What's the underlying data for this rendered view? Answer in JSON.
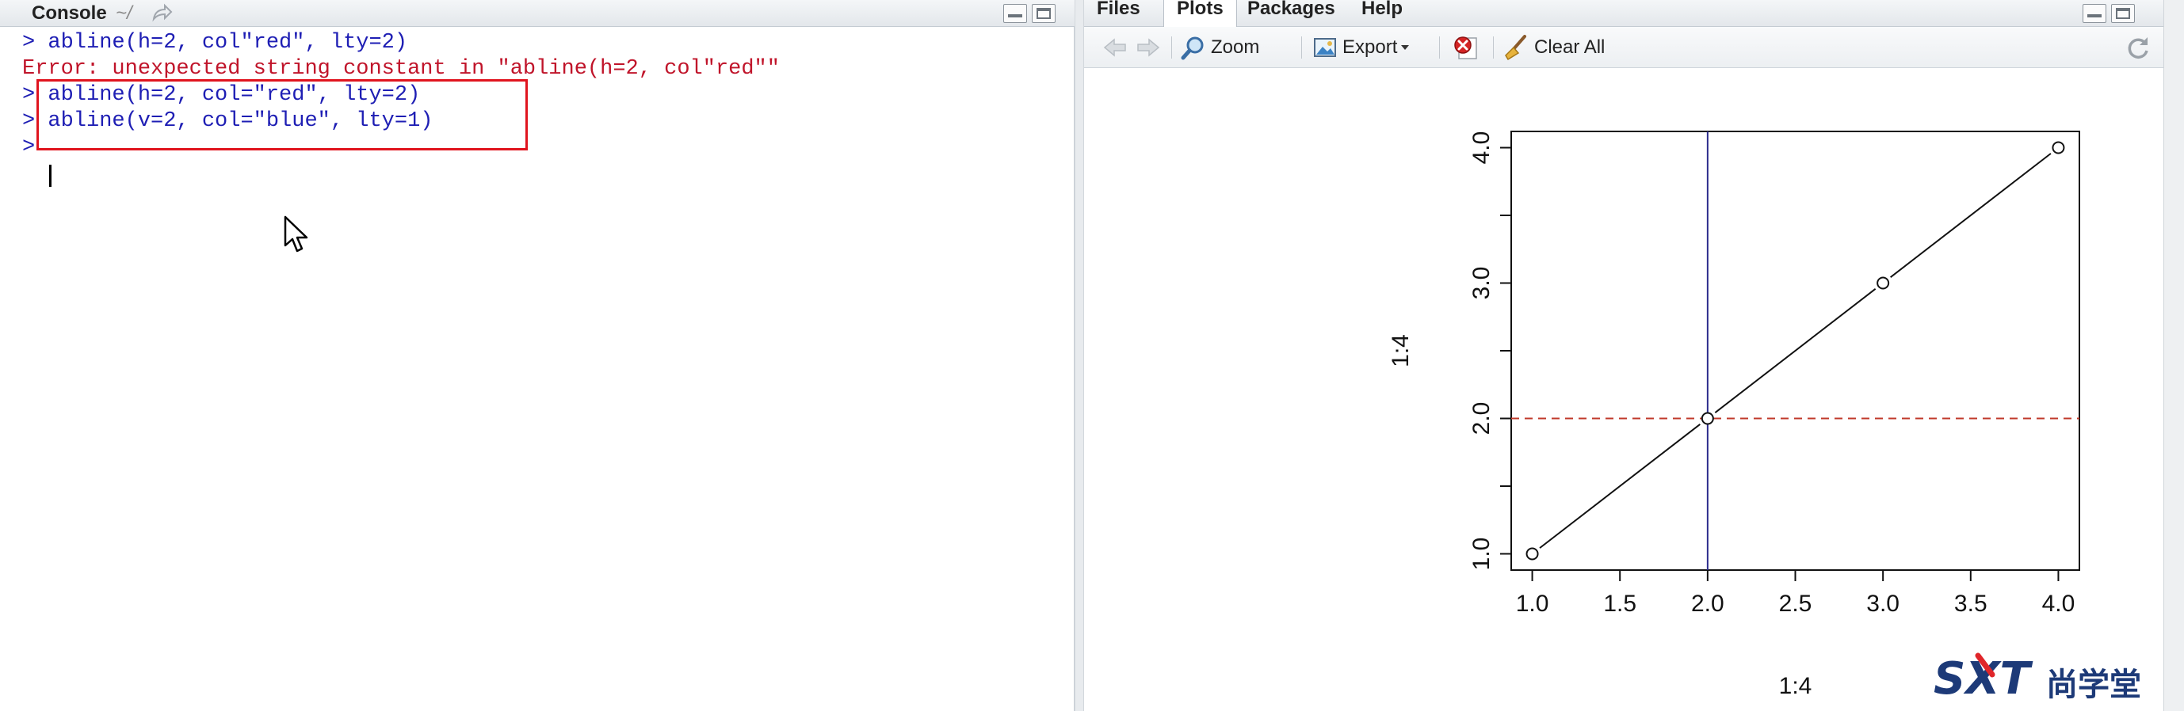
{
  "console": {
    "title": "Console",
    "path": "~/",
    "lines": [
      {
        "text": "> abline(h=2, col\"red\", lty=2)",
        "kind": "cmd"
      },
      {
        "text": "Error: unexpected string constant in \"abline(h=2, col\"red\"\"",
        "kind": "err"
      },
      {
        "text": "> abline(h=2, col=\"red\", lty=2)",
        "kind": "cmd"
      },
      {
        "text": "> abline(v=2, col=\"blue\", lty=1)",
        "kind": "cmd"
      },
      {
        "text": ">",
        "kind": "cmd"
      }
    ]
  },
  "plots_pane": {
    "tabs": [
      {
        "label": "Files",
        "active": false
      },
      {
        "label": "Plots",
        "active": true
      },
      {
        "label": "Packages",
        "active": false
      },
      {
        "label": "Help",
        "active": false
      }
    ],
    "toolbar": {
      "zoom_label": "Zoom",
      "export_label": "Export",
      "clear_all_label": "Clear All"
    }
  },
  "chart_data": {
    "type": "line",
    "x": [
      1,
      2,
      3,
      4
    ],
    "y": [
      1,
      2,
      3,
      4
    ],
    "xlabel": "1:4",
    "ylabel": "1:4",
    "xlim": [
      0.88,
      4.12
    ],
    "ylim": [
      0.88,
      4.12
    ],
    "x_ticks": [
      "1.0",
      "1.5",
      "2.0",
      "2.5",
      "3.0",
      "3.5",
      "4.0"
    ],
    "x_tick_values": [
      1.0,
      1.5,
      2.0,
      2.5,
      3.0,
      3.5,
      4.0
    ],
    "y_ticks": [
      "1.0",
      "2.0",
      "3.0",
      "4.0"
    ],
    "y_tick_values": [
      1.0,
      2.0,
      3.0,
      4.0
    ],
    "y_minor_tick_values": [
      1.5,
      2.5,
      3.5
    ],
    "point_style": "open-circle",
    "abline_h": {
      "value": 2,
      "color": "#c0392b",
      "style": "dashed"
    },
    "abline_v": {
      "value": 2,
      "color": "#2c2c8c",
      "style": "solid"
    }
  },
  "watermark": {
    "text": "尚学堂",
    "logo_text": "SXT"
  }
}
